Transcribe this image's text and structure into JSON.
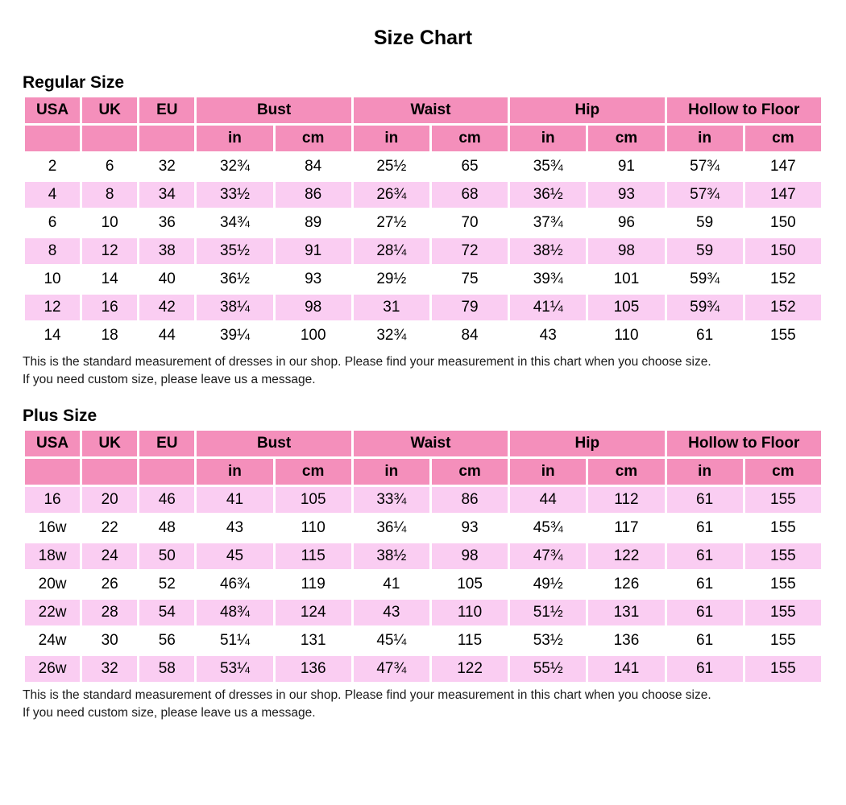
{
  "page": {
    "title": "Size Chart"
  },
  "colors": {
    "header_pink": "#F48FBB",
    "row_pink": "#FACDF2"
  },
  "note": {
    "line1": "This is the standard measurement of dresses in our shop. Please find your measurement in this chart when you choose size.",
    "line2": "If you need custom size, please leave us a message."
  },
  "tables": [
    {
      "section_title": "Regular Size",
      "headers": {
        "usa": "USA",
        "uk": "UK",
        "eu": "EU",
        "bust": "Bust",
        "waist": "Waist",
        "hip": "Hip",
        "hollow": "Hollow to Floor",
        "in": "in",
        "cm": "cm"
      },
      "rows": [
        [
          "2",
          "6",
          "32",
          "32¾",
          "84",
          "25½",
          "65",
          "35¾",
          "91",
          "57¾",
          "147"
        ],
        [
          "4",
          "8",
          "34",
          "33½",
          "86",
          "26¾",
          "68",
          "36½",
          "93",
          "57¾",
          "147"
        ],
        [
          "6",
          "10",
          "36",
          "34¾",
          "89",
          "27½",
          "70",
          "37¾",
          "96",
          "59",
          "150"
        ],
        [
          "8",
          "12",
          "38",
          "35½",
          "91",
          "28¼",
          "72",
          "38½",
          "98",
          "59",
          "150"
        ],
        [
          "10",
          "14",
          "40",
          "36½",
          "93",
          "29½",
          "75",
          "39¾",
          "101",
          "59¾",
          "152"
        ],
        [
          "12",
          "16",
          "42",
          "38¼",
          "98",
          "31",
          "79",
          "41¼",
          "105",
          "59¾",
          "152"
        ],
        [
          "14",
          "18",
          "44",
          "39¼",
          "100",
          "32¾",
          "84",
          "43",
          "110",
          "61",
          "155"
        ]
      ]
    },
    {
      "section_title": "Plus Size",
      "headers": {
        "usa": "USA",
        "uk": "UK",
        "eu": "EU",
        "bust": "Bust",
        "waist": "Waist",
        "hip": "Hip",
        "hollow": "Hollow to Floor",
        "in": "in",
        "cm": "cm"
      },
      "rows": [
        [
          "16",
          "20",
          "46",
          "41",
          "105",
          "33¾",
          "86",
          "44",
          "112",
          "61",
          "155"
        ],
        [
          "16w",
          "22",
          "48",
          "43",
          "110",
          "36¼",
          "93",
          "45¾",
          "117",
          "61",
          "155"
        ],
        [
          "18w",
          "24",
          "50",
          "45",
          "115",
          "38½",
          "98",
          "47¾",
          "122",
          "61",
          "155"
        ],
        [
          "20w",
          "26",
          "52",
          "46¾",
          "119",
          "41",
          "105",
          "49½",
          "126",
          "61",
          "155"
        ],
        [
          "22w",
          "28",
          "54",
          "48¾",
          "124",
          "43",
          "110",
          "51½",
          "131",
          "61",
          "155"
        ],
        [
          "24w",
          "30",
          "56",
          "51¼",
          "131",
          "45¼",
          "115",
          "53½",
          "136",
          "61",
          "155"
        ],
        [
          "26w",
          "32",
          "58",
          "53¼",
          "136",
          "47¾",
          "122",
          "55½",
          "141",
          "61",
          "155"
        ]
      ]
    }
  ]
}
